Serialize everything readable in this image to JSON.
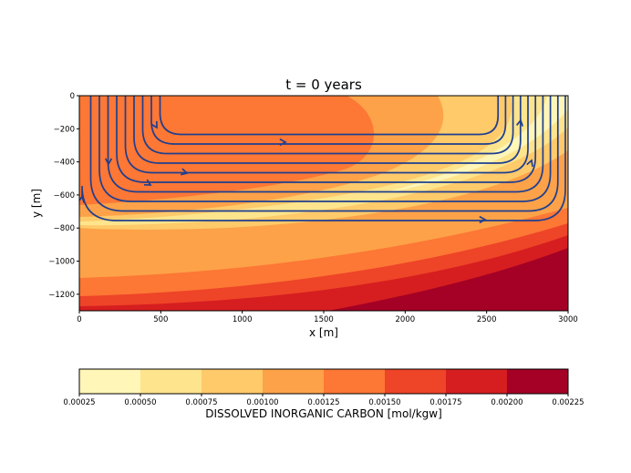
{
  "chart_data": {
    "type": "contour",
    "title": "t = 0 years",
    "xlabel": "x [m]",
    "ylabel": "y [m]",
    "xlim": [
      0,
      3000
    ],
    "ylim": [
      -1300,
      0
    ],
    "x_ticks": [
      0,
      500,
      1000,
      1500,
      2000,
      2500,
      3000
    ],
    "y_ticks": [
      0,
      -200,
      -400,
      -600,
      -800,
      -1000,
      -1200
    ],
    "colorbar": {
      "label": "DISSOLVED INORGANIC CARBON [mol/kgw]",
      "levels": [
        0.00025,
        0.0005,
        0.00075,
        0.001,
        0.00125,
        0.0015,
        0.00175,
        0.002,
        0.00225
      ],
      "tick_labels": [
        "0.00025",
        "0.00050",
        "0.00075",
        "0.00100",
        "0.00125",
        "0.00150",
        "0.00175",
        "0.00200",
        "0.00225"
      ],
      "colors": [
        "#fff6b8",
        "#fee48c",
        "#feca6a",
        "#fda248",
        "#fd7735",
        "#ee4428",
        "#d61e20",
        "#a50026"
      ]
    },
    "streamlines": {
      "color": "#1f3f8f",
      "count": 10,
      "direction": "clockwise circulation, downward on left, rightward along bottom, upward on right"
    }
  }
}
